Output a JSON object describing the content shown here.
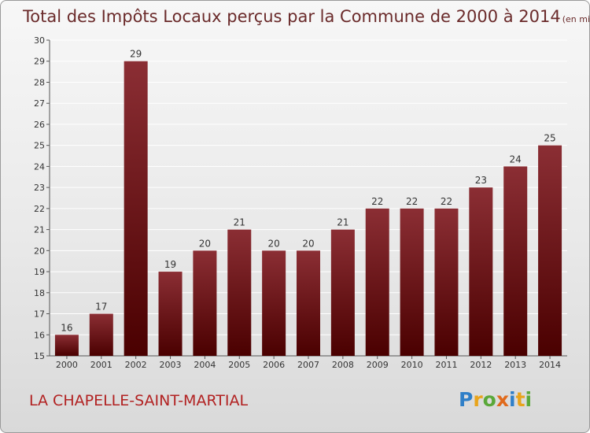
{
  "chart_data": {
    "type": "bar",
    "title": "Total des Impôts Locaux perçus par la Commune de 2000 à 2014",
    "unit_label": "(en milliers d'€)",
    "categories": [
      "2000",
      "2001",
      "2002",
      "2003",
      "2004",
      "2005",
      "2006",
      "2007",
      "2008",
      "2009",
      "2010",
      "2011",
      "2012",
      "2013",
      "2014"
    ],
    "values": [
      16,
      17,
      29,
      19,
      20,
      21,
      20,
      20,
      21,
      22,
      22,
      22,
      23,
      24,
      25
    ],
    "ylim": [
      15,
      30
    ],
    "yticks": [
      15,
      16,
      17,
      18,
      19,
      20,
      21,
      22,
      23,
      24,
      25,
      26,
      27,
      28,
      29,
      30
    ],
    "grid": true,
    "xlabel": "",
    "ylabel": ""
  },
  "footer": {
    "commune": "LA CHAPELLE-SAINT-MARTIAL",
    "logo": "Proxiti"
  },
  "colors": {
    "bar_top": "#8b2e34",
    "bar_bottom": "#4a0000",
    "commune": "#b22222",
    "title": "#6a2a2a"
  }
}
